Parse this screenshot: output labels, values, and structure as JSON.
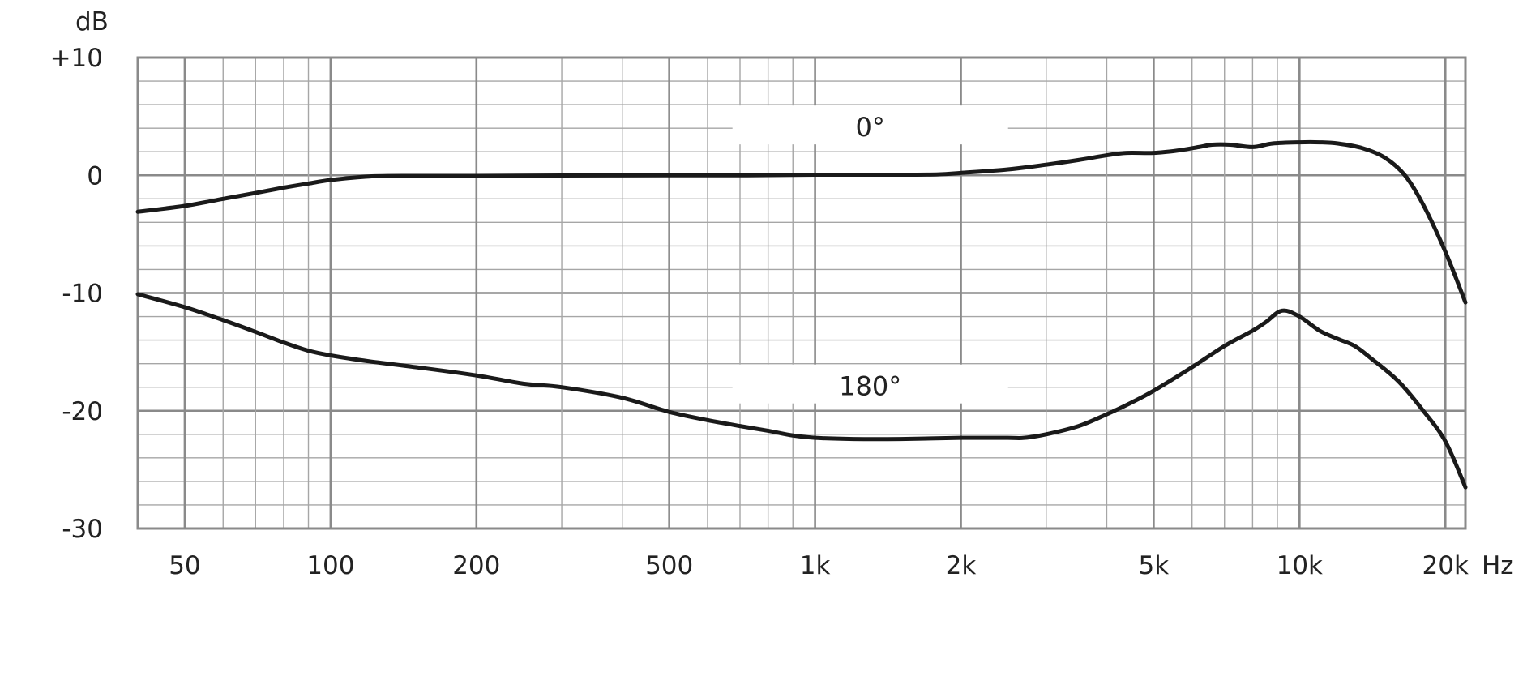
{
  "chart_data": {
    "type": "line",
    "title": "",
    "xlabel": "",
    "ylabel": "",
    "x_unit": "Hz",
    "y_unit": "dB",
    "x_scale": "log",
    "xlim": [
      40,
      22000
    ],
    "ylim": [
      -30,
      10
    ],
    "grid": true,
    "colors": {
      "grid_major": "#8a8a8a",
      "grid_minor": "#a6a6a6",
      "curve": "#1a1a1a",
      "background": "#ffffff"
    },
    "x_ticks": [
      {
        "value": 50,
        "label": "50"
      },
      {
        "value": 100,
        "label": "100"
      },
      {
        "value": 200,
        "label": "200"
      },
      {
        "value": 500,
        "label": "500"
      },
      {
        "value": 1000,
        "label": "1k"
      },
      {
        "value": 2000,
        "label": "2k"
      },
      {
        "value": 5000,
        "label": "5k"
      },
      {
        "value": 10000,
        "label": "10k"
      },
      {
        "value": 20000,
        "label": "20k"
      }
    ],
    "y_ticks": [
      {
        "value": 10,
        "label": "+10"
      },
      {
        "value": 0,
        "label": "0"
      },
      {
        "value": -10,
        "label": "-10"
      },
      {
        "value": -20,
        "label": "-20"
      },
      {
        "value": -30,
        "label": "-30"
      }
    ],
    "series": [
      {
        "name": "0°",
        "points": [
          [
            40,
            -3.1
          ],
          [
            50,
            -2.6
          ],
          [
            60,
            -2.0
          ],
          [
            70,
            -1.5
          ],
          [
            80,
            -1.05
          ],
          [
            90,
            -0.7
          ],
          [
            100,
            -0.4
          ],
          [
            120,
            -0.1
          ],
          [
            150,
            -0.05
          ],
          [
            200,
            -0.05
          ],
          [
            300,
            -0.02
          ],
          [
            500,
            0.0
          ],
          [
            700,
            0.0
          ],
          [
            1000,
            0.05
          ],
          [
            1500,
            0.05
          ],
          [
            1800,
            0.08
          ],
          [
            2000,
            0.2
          ],
          [
            2500,
            0.5
          ],
          [
            3000,
            0.9
          ],
          [
            3500,
            1.3
          ],
          [
            4000,
            1.7
          ],
          [
            4400,
            1.9
          ],
          [
            5000,
            1.9
          ],
          [
            5600,
            2.1
          ],
          [
            6200,
            2.4
          ],
          [
            6600,
            2.6
          ],
          [
            7200,
            2.6
          ],
          [
            8000,
            2.4
          ],
          [
            8800,
            2.7
          ],
          [
            10000,
            2.8
          ],
          [
            11000,
            2.8
          ],
          [
            12000,
            2.7
          ],
          [
            13500,
            2.3
          ],
          [
            15000,
            1.5
          ],
          [
            16500,
            0.0
          ],
          [
            18000,
            -2.5
          ],
          [
            20000,
            -6.5
          ],
          [
            22000,
            -10.8
          ]
        ]
      },
      {
        "name": "180°",
        "points": [
          [
            40,
            -10.1
          ],
          [
            50,
            -11.2
          ],
          [
            60,
            -12.3
          ],
          [
            70,
            -13.3
          ],
          [
            80,
            -14.2
          ],
          [
            90,
            -14.9
          ],
          [
            100,
            -15.3
          ],
          [
            120,
            -15.8
          ],
          [
            150,
            -16.3
          ],
          [
            200,
            -17.0
          ],
          [
            250,
            -17.7
          ],
          [
            300,
            -18.0
          ],
          [
            400,
            -18.9
          ],
          [
            500,
            -20.1
          ],
          [
            600,
            -20.8
          ],
          [
            700,
            -21.3
          ],
          [
            800,
            -21.7
          ],
          [
            900,
            -22.1
          ],
          [
            1000,
            -22.3
          ],
          [
            1200,
            -22.4
          ],
          [
            1500,
            -22.4
          ],
          [
            2000,
            -22.3
          ],
          [
            2500,
            -22.3
          ],
          [
            2700,
            -22.3
          ],
          [
            3000,
            -22.0
          ],
          [
            3500,
            -21.3
          ],
          [
            4000,
            -20.3
          ],
          [
            4500,
            -19.3
          ],
          [
            5000,
            -18.3
          ],
          [
            6000,
            -16.3
          ],
          [
            7000,
            -14.5
          ],
          [
            8000,
            -13.2
          ],
          [
            8500,
            -12.5
          ],
          [
            9200,
            -11.5
          ],
          [
            10000,
            -12.0
          ],
          [
            11000,
            -13.2
          ],
          [
            12000,
            -13.9
          ],
          [
            13000,
            -14.5
          ],
          [
            14000,
            -15.5
          ],
          [
            16000,
            -17.5
          ],
          [
            18000,
            -20.0
          ],
          [
            20000,
            -22.6
          ],
          [
            22000,
            -26.5
          ]
        ]
      }
    ],
    "annotations": [
      {
        "text": "0°",
        "x": 1300,
        "y": 4
      },
      {
        "text": "180°",
        "x": 1300,
        "y": -18
      }
    ]
  }
}
